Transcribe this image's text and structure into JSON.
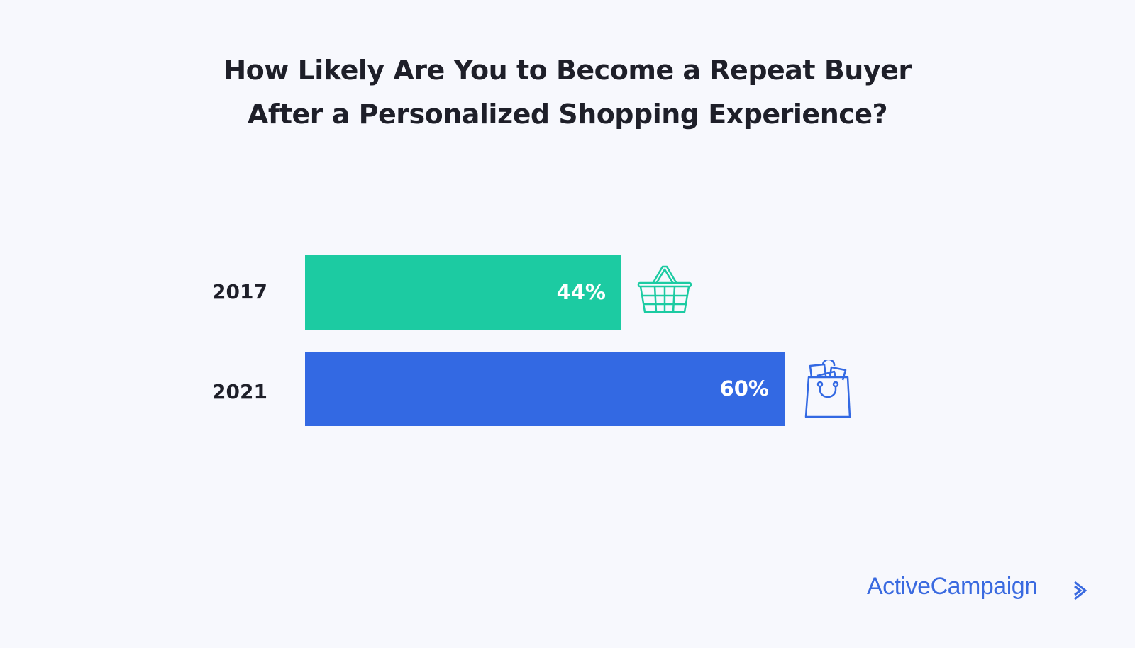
{
  "chart_data": {
    "type": "bar",
    "orientation": "horizontal",
    "title": "How Likely Are You to Become a Repeat Buyer After a Personalized Shopping Experience?",
    "title_lines": [
      "How Likely Are You to Become a Repeat Buyer",
      "After a Personalized Shopping Experience?"
    ],
    "categories": [
      "2017",
      "2021"
    ],
    "values": [
      44,
      60
    ],
    "value_labels": [
      "44%",
      "60%"
    ],
    "colors": [
      "#1ccba2",
      "#3369e3"
    ],
    "icons": [
      "shopping-basket-icon",
      "shopping-bag-icon"
    ],
    "xlabel": "",
    "ylabel": "",
    "grid": false
  },
  "brand": {
    "name": "ActiveCampaign",
    "color": "#3a6ae0"
  }
}
